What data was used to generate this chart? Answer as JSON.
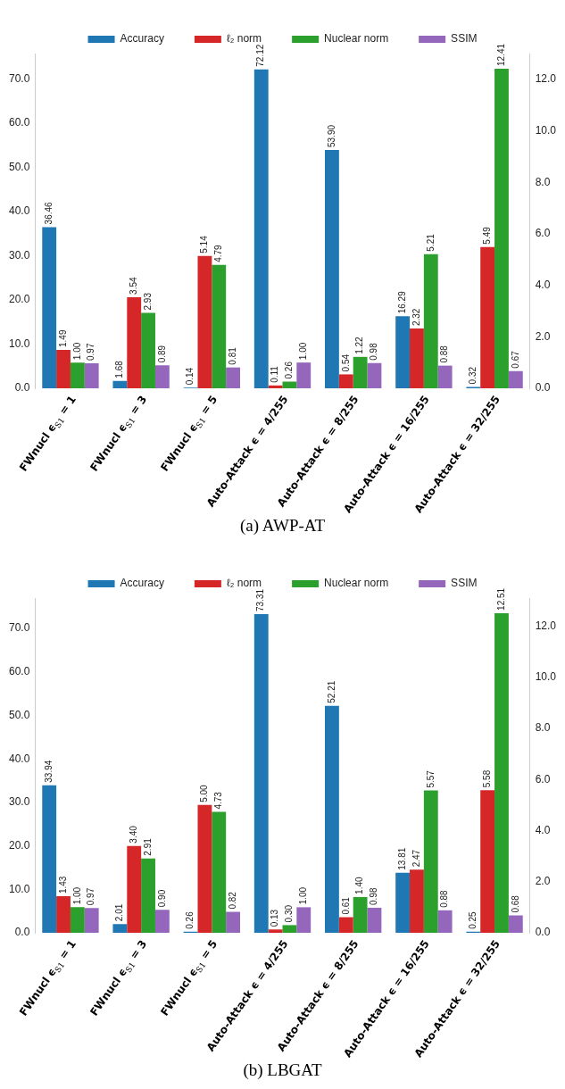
{
  "chart_data": [
    {
      "type": "bar",
      "title": "(a) AWP-AT",
      "categories": [
        "FWnucl ϵ$_{S1}$ = 1",
        "FWnucl ϵ$_{S1}$ = 3",
        "FWnucl ϵ$_{S1}$ = 5",
        "Auto-Attack ϵ = 4/255",
        "Auto-Attack ϵ = 8/255",
        "Auto-Attack ϵ = 16/255",
        "Auto-Attack ϵ = 32/255"
      ],
      "series": [
        {
          "name": "Accuracy",
          "color": "#1f77b4",
          "values": [
            36.46,
            1.68,
            0.14,
            72.12,
            53.9,
            16.29,
            0.32
          ],
          "value_labels": [
            "36.46",
            "1.68",
            "0.14",
            "72.12",
            "53.90",
            "16.29",
            "0.32"
          ]
        },
        {
          "name": "ℓ₂ norm",
          "color": "#d62728",
          "axis": "y2",
          "values": [
            1.49,
            3.54,
            5.14,
            0.11,
            0.54,
            2.32,
            5.49
          ],
          "value_labels": [
            "1.49",
            "3.54",
            "5.14",
            "0.11",
            "0.54",
            "2.32",
            "5.49"
          ]
        },
        {
          "name": "Nuclear norm",
          "color": "#2ca02c",
          "axis": "y2",
          "values": [
            1.0,
            2.93,
            4.79,
            0.26,
            1.22,
            5.21,
            12.41
          ],
          "value_labels": [
            "1.00",
            "2.93",
            "4.79",
            "0.26",
            "1.22",
            "5.21",
            "12.41"
          ]
        },
        {
          "name": "SSIM",
          "color": "#9467bd",
          "axis": "y2",
          "values": [
            0.97,
            0.89,
            0.81,
            1.0,
            0.98,
            0.88,
            0.67
          ],
          "value_labels": [
            "0.97",
            "0.89",
            "0.81",
            "1.00",
            "0.98",
            "0.88",
            "0.67"
          ]
        }
      ],
      "ylim": [
        0,
        75.7
      ],
      "yticks": [
        {
          "value": 0,
          "label": "0.0"
        },
        {
          "value": 10,
          "label": "10.0"
        },
        {
          "value": 20,
          "label": "20.0"
        },
        {
          "value": 30,
          "label": "30.0"
        },
        {
          "value": 40,
          "label": "40.0"
        },
        {
          "value": 50,
          "label": "50.0"
        },
        {
          "value": 60,
          "label": "60.0"
        },
        {
          "value": 70,
          "label": "70.0"
        }
      ],
      "y2lim": [
        0,
        13.0
      ],
      "y2ticks": [
        {
          "value": 0,
          "label": "0.0"
        },
        {
          "value": 2,
          "label": "2.0"
        },
        {
          "value": 4,
          "label": "4.0"
        },
        {
          "value": 6,
          "label": "6.0"
        },
        {
          "value": 8,
          "label": "8.0"
        },
        {
          "value": 10,
          "label": "10.0"
        },
        {
          "value": 12,
          "label": "12.0"
        }
      ],
      "legend": "top"
    },
    {
      "type": "bar",
      "title": "(b) LBGAT",
      "categories": [
        "FWnucl ϵ$_{S1}$ = 1",
        "FWnucl ϵ$_{S1}$ = 3",
        "FWnucl ϵ$_{S1}$ = 5",
        "Auto-Attack ϵ = 4/255",
        "Auto-Attack ϵ = 8/255",
        "Auto-Attack ϵ = 16/255",
        "Auto-Attack ϵ = 32/255"
      ],
      "series": [
        {
          "name": "Accuracy",
          "color": "#1f77b4",
          "values": [
            33.94,
            2.01,
            0.26,
            73.31,
            52.21,
            13.81,
            0.25
          ],
          "value_labels": [
            "33.94",
            "2.01",
            "0.26",
            "73.31",
            "52.21",
            "13.81",
            "0.25"
          ]
        },
        {
          "name": "ℓ₂ norm",
          "color": "#d62728",
          "axis": "y2",
          "values": [
            1.43,
            3.4,
            5.0,
            0.13,
            0.61,
            2.47,
            5.58
          ],
          "value_labels": [
            "1.43",
            "3.40",
            "5.00",
            "0.13",
            "0.61",
            "2.47",
            "5.58"
          ]
        },
        {
          "name": "Nuclear norm",
          "color": "#2ca02c",
          "axis": "y2",
          "values": [
            1.0,
            2.91,
            4.73,
            0.3,
            1.4,
            5.57,
            12.51
          ],
          "value_labels": [
            "1.00",
            "2.91",
            "4.73",
            "0.30",
            "1.40",
            "5.57",
            "12.51"
          ]
        },
        {
          "name": "SSIM",
          "color": "#9467bd",
          "axis": "y2",
          "values": [
            0.97,
            0.9,
            0.82,
            1.0,
            0.98,
            0.88,
            0.68
          ],
          "value_labels": [
            "0.97",
            "0.90",
            "0.82",
            "1.00",
            "0.98",
            "0.88",
            "0.68"
          ]
        }
      ],
      "ylim": [
        0,
        77.0
      ],
      "yticks": [
        {
          "value": 0,
          "label": "0.0"
        },
        {
          "value": 10,
          "label": "10.0"
        },
        {
          "value": 20,
          "label": "20.0"
        },
        {
          "value": 30,
          "label": "30.0"
        },
        {
          "value": 40,
          "label": "40.0"
        },
        {
          "value": 50,
          "label": "50.0"
        },
        {
          "value": 60,
          "label": "60.0"
        },
        {
          "value": 70,
          "label": "70.0"
        }
      ],
      "y2lim": [
        0,
        13.1
      ],
      "y2ticks": [
        {
          "value": 0,
          "label": "0.0"
        },
        {
          "value": 2,
          "label": "2.0"
        },
        {
          "value": 4,
          "label": "4.0"
        },
        {
          "value": 6,
          "label": "6.0"
        },
        {
          "value": 8,
          "label": "8.0"
        },
        {
          "value": 10,
          "label": "10.0"
        },
        {
          "value": 12,
          "label": "12.0"
        }
      ],
      "legend": "top"
    }
  ]
}
